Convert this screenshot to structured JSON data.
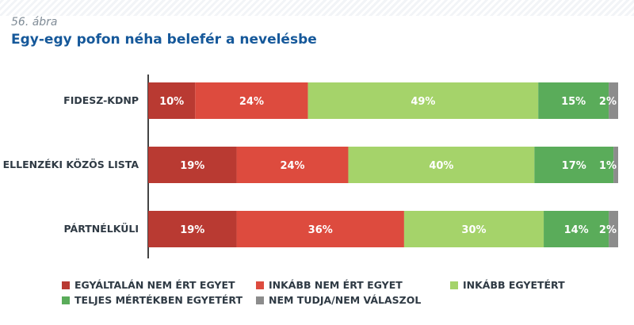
{
  "figure": {
    "label": "56. ábra",
    "title": "Egy-egy pofon néha belefér a nevelésbe"
  },
  "chart_data": {
    "type": "bar",
    "orientation": "horizontal",
    "stacked": true,
    "categories": [
      "FIDESZ-KDNP",
      "ELLENZÉKI KÖZÖS LISTA",
      "PÁRTNÉLKÜLI"
    ],
    "series": [
      {
        "name": "EGYÁLTALÁN NEM ÉRT EGYET",
        "color": "#b93a32",
        "values": [
          10,
          19,
          19
        ],
        "labels": [
          "10%",
          "19%",
          "19%"
        ]
      },
      {
        "name": "INKÁBB NEM ÉRT EGYET",
        "color": "#dd4b3e",
        "values": [
          24,
          24,
          36
        ],
        "labels": [
          "24%",
          "24%",
          "36%"
        ]
      },
      {
        "name": "INKÁBB EGYETÉRT",
        "color": "#a5d36a",
        "values": [
          49,
          40,
          30
        ],
        "labels": [
          "49%",
          "40%",
          "30%"
        ]
      },
      {
        "name": "TELJES MÉRTÉKBEN EGYETÉRT",
        "color": "#5aac5a",
        "values": [
          15,
          17,
          14
        ],
        "labels": [
          "15%",
          "17%",
          "14%"
        ]
      },
      {
        "name": "NEM TUDJA/NEM VÁLASZOL",
        "color": "#8c8c8c",
        "values": [
          2,
          1,
          2
        ],
        "labels": [
          "2%",
          "1%",
          "2%"
        ]
      }
    ],
    "legend_position": "bottom",
    "grid": false
  }
}
